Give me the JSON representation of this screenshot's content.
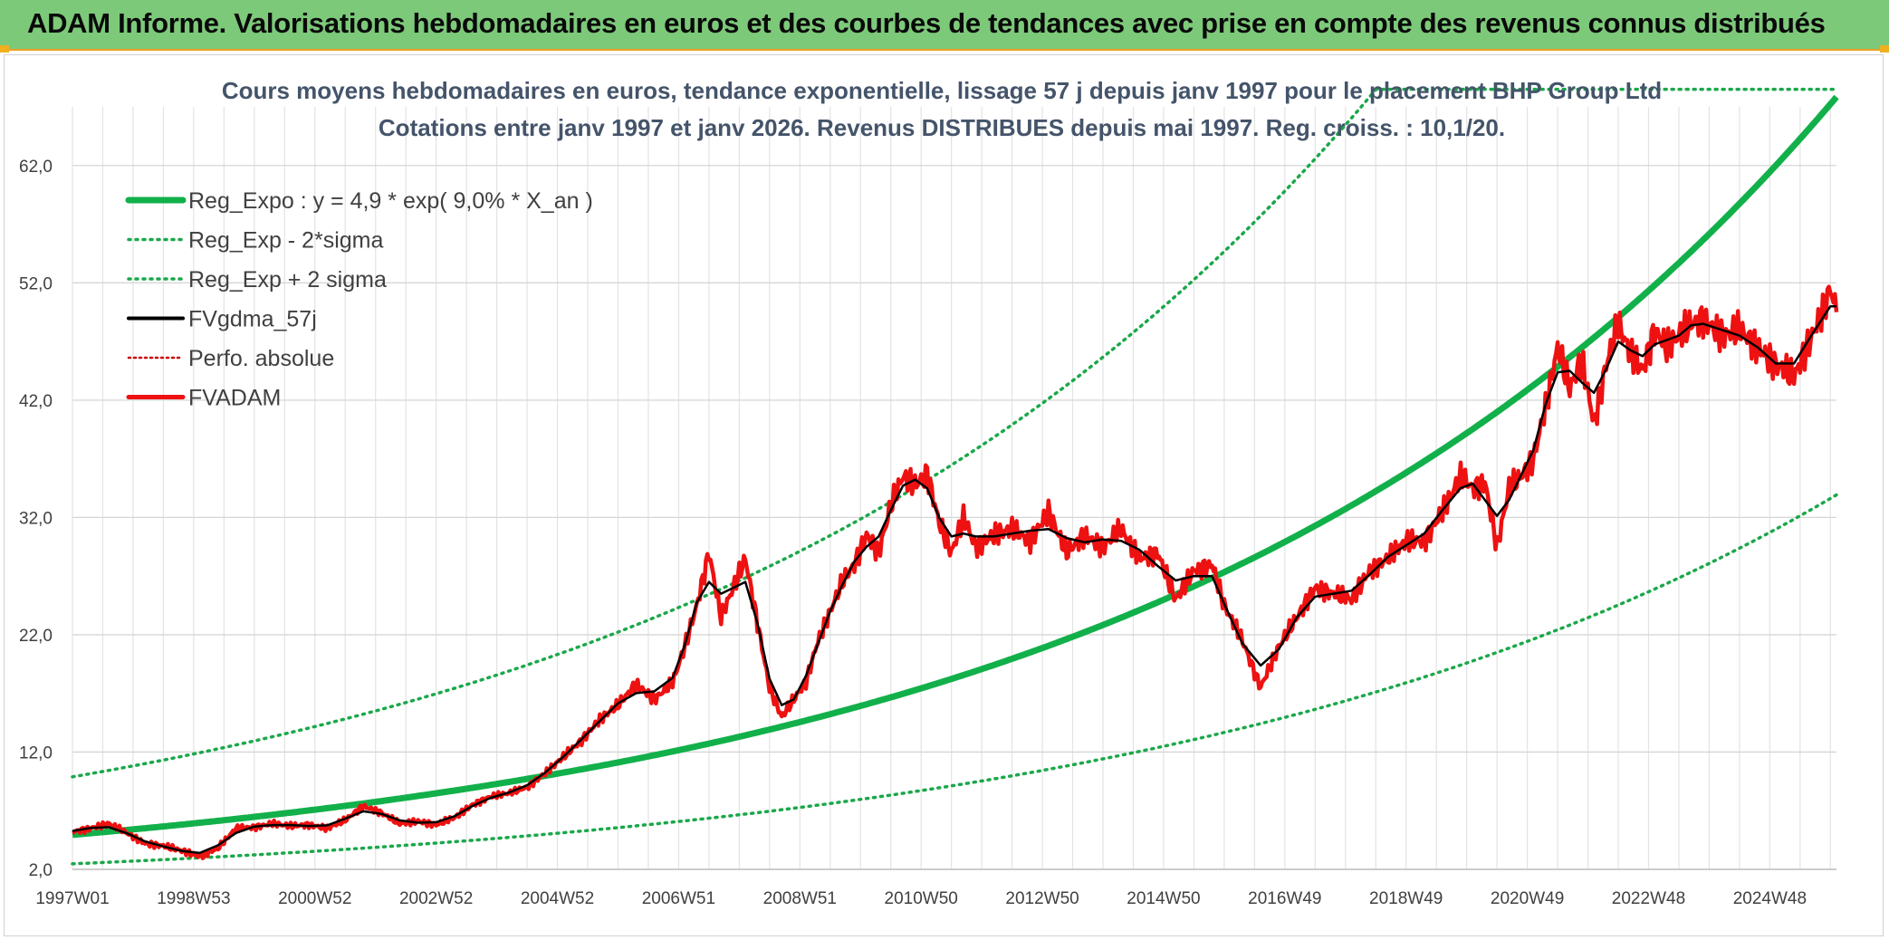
{
  "banner": {
    "title": "ADAM Informe. Valorisations hebdomadaires en euros et des courbes de tendances avec prise en compte des revenus connus distribués"
  },
  "colors": {
    "banner_bg": "#7dc97a",
    "trend": "#12b04a",
    "trend_band": "#1aa84a",
    "gdma": "#000000",
    "fvadam": "#ee1111",
    "perfo": "#cc0000"
  },
  "chart_data": {
    "type": "line",
    "title": "Cours moyens hebdomadaires en euros, tendance exponentielle, lissage 57 j depuis janv 1997 pour le placement BHP Group Ltd",
    "subtitle": "Cotations entre janv 1997 et janv 2026. Revenus DISTRIBUES depuis mai 1997. Reg. croiss. : 10,1/20.",
    "xlabel": "",
    "ylabel": "",
    "x_range": [
      1997.0,
      2026.1
    ],
    "ylim": [
      2.0,
      67.0
    ],
    "y_ticks": [
      "2,0",
      "12,0",
      "22,0",
      "32,0",
      "42,0",
      "52,0",
      "62,0"
    ],
    "y_tick_values": [
      2,
      12,
      22,
      32,
      42,
      52,
      62
    ],
    "x_ticks": [
      "1997W01",
      "1998W53",
      "2000W52",
      "2002W52",
      "2004W52",
      "2006W51",
      "2008W51",
      "2010W50",
      "2012W50",
      "2014W50",
      "2016W49",
      "2018W49",
      "2020W49",
      "2022W48",
      "2024W48"
    ],
    "x_tick_values": [
      1997.0,
      1999.0,
      2001.0,
      2003.0,
      2005.0,
      2007.0,
      2009.0,
      2011.0,
      2013.0,
      2015.0,
      2017.0,
      2019.0,
      2021.0,
      2023.0,
      2025.0
    ],
    "grid": true,
    "legend_position": "top-left",
    "trend": {
      "a": 4.9,
      "rate": 0.09,
      "band_factor": 2.0
    },
    "series": [
      {
        "name": "Reg_Expo : y = 4,9 * exp( 9,0% *  X_an )",
        "style": "thick-solid"
      },
      {
        "name": "Reg_Exp - 2*sigma",
        "style": "dotted"
      },
      {
        "name": "Reg_Exp + 2 sigma",
        "style": "dotted"
      },
      {
        "name": "FVgdma_57j",
        "style": "solid"
      },
      {
        "name": "Perfo. absolue",
        "style": "dotted"
      },
      {
        "name": "FVADAM",
        "style": "thick-solid",
        "x": [
          1997.0,
          1997.3,
          1997.6,
          1997.9,
          1998.2,
          1998.5,
          1998.8,
          1999.1,
          1999.4,
          1999.7,
          2000.0,
          2000.3,
          2000.6,
          2000.9,
          2001.2,
          2001.5,
          2001.8,
          2002.1,
          2002.4,
          2002.7,
          2003.0,
          2003.3,
          2003.6,
          2003.9,
          2004.2,
          2004.5,
          2004.8,
          2005.1,
          2005.4,
          2005.7,
          2006.0,
          2006.3,
          2006.6,
          2006.9,
          2007.1,
          2007.3,
          2007.5,
          2007.7,
          2007.9,
          2008.1,
          2008.3,
          2008.5,
          2008.7,
          2008.9,
          2009.1,
          2009.3,
          2009.5,
          2009.7,
          2009.9,
          2010.1,
          2010.3,
          2010.5,
          2010.7,
          2010.9,
          2011.1,
          2011.3,
          2011.5,
          2011.7,
          2011.9,
          2012.2,
          2012.5,
          2012.8,
          2013.1,
          2013.4,
          2013.7,
          2014.0,
          2014.3,
          2014.6,
          2014.9,
          2015.2,
          2015.5,
          2015.8,
          2016.0,
          2016.3,
          2016.6,
          2016.9,
          2017.2,
          2017.5,
          2017.8,
          2018.1,
          2018.4,
          2018.7,
          2019.0,
          2019.3,
          2019.6,
          2019.9,
          2020.1,
          2020.3,
          2020.5,
          2020.7,
          2020.9,
          2021.1,
          2021.3,
          2021.5,
          2021.7,
          2021.9,
          2022.1,
          2022.3,
          2022.5,
          2022.7,
          2022.9,
          2023.1,
          2023.3,
          2023.5,
          2023.7,
          2023.9,
          2024.2,
          2024.5,
          2024.8,
          2025.1,
          2025.4,
          2025.7,
          2026.0,
          2026.1
        ],
        "y": [
          5.2,
          5.5,
          5.9,
          5.1,
          4.2,
          4.0,
          3.6,
          3.1,
          3.8,
          5.5,
          5.6,
          5.9,
          5.7,
          5.8,
          5.5,
          6.2,
          7.4,
          6.8,
          5.9,
          6.1,
          5.8,
          6.4,
          7.5,
          8.2,
          8.5,
          9.0,
          10.2,
          11.6,
          13.0,
          14.8,
          16.0,
          17.8,
          16.5,
          17.9,
          21.0,
          24.5,
          29.0,
          23.5,
          26.0,
          28.5,
          23.0,
          17.5,
          15.0,
          16.5,
          18.0,
          21.5,
          24.0,
          26.5,
          28.0,
          30.5,
          29.0,
          33.0,
          35.5,
          34.8,
          35.8,
          31.5,
          29.0,
          32.0,
          29.5,
          30.5,
          31.0,
          30.0,
          32.5,
          29.0,
          30.5,
          29.5,
          31.0,
          28.5,
          29.0,
          25.0,
          27.5,
          28.0,
          24.5,
          21.5,
          17.5,
          21.0,
          23.5,
          26.0,
          25.5,
          25.0,
          27.5,
          28.5,
          30.0,
          30.0,
          32.5,
          35.5,
          34.5,
          35.0,
          29.5,
          34.5,
          35.5,
          37.0,
          41.5,
          46.5,
          43.0,
          45.5,
          40.0,
          45.0,
          48.5,
          46.0,
          44.5,
          48.0,
          46.5,
          47.5,
          48.5,
          49.0,
          47.5,
          48.0,
          46.5,
          45.0,
          44.0,
          47.5,
          51.5,
          49.5
        ]
      }
    ]
  }
}
